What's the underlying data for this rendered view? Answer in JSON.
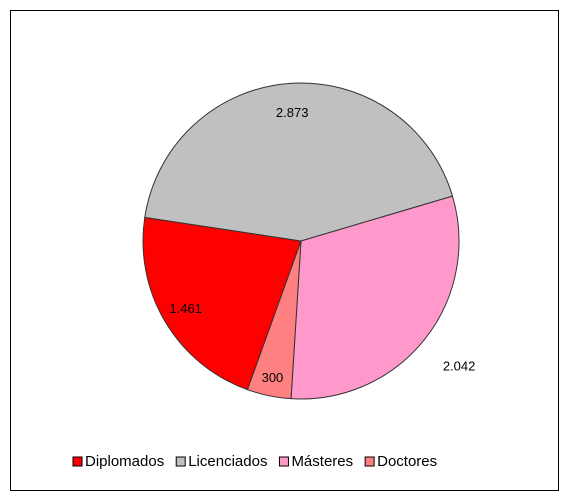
{
  "chart_data": {
    "type": "pie",
    "categories": [
      "Diplomados",
      "Licenciados",
      "Másteres",
      "Doctores"
    ],
    "values": [
      1461,
      2873,
      2042,
      300
    ],
    "value_labels": [
      "1.461",
      "2.873",
      "2.042",
      "300"
    ],
    "colors": [
      "#ff0000",
      "#c0c0c0",
      "#ff99cc",
      "#ff8080"
    ],
    "legend": "bottom"
  }
}
